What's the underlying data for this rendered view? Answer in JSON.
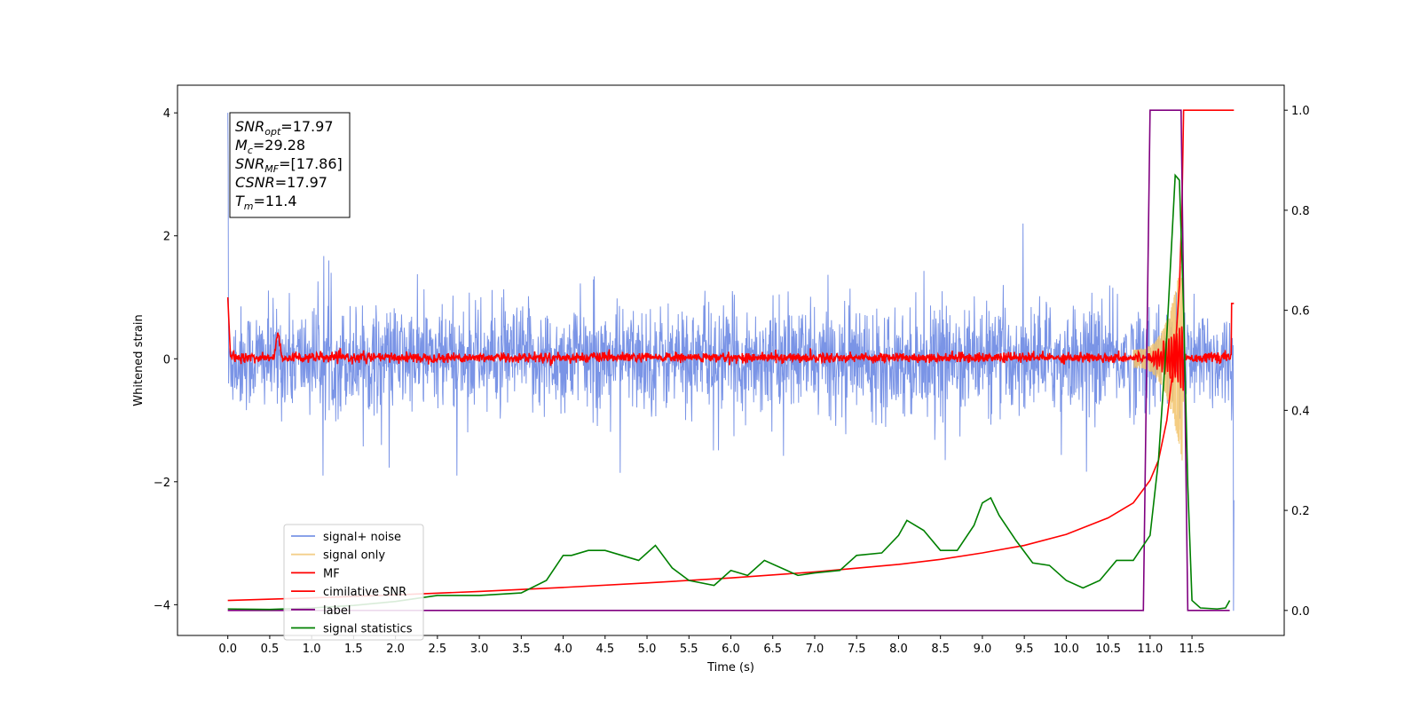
{
  "chart_data": {
    "type": "line",
    "xlabel": "Time (s)",
    "ylabel": "Whitened strain",
    "xlim": [
      -0.6,
      12.6
    ],
    "ylim": [
      -4.5,
      4.45
    ],
    "y2lim": [
      -0.05,
      1.05
    ],
    "x_ticks": [
      "0.0",
      "0.5",
      "1.0",
      "1.5",
      "2.0",
      "2.5",
      "3.0",
      "3.5",
      "4.0",
      "4.5",
      "5.0",
      "5.5",
      "6.0",
      "6.5",
      "7.0",
      "7.5",
      "8.0",
      "8.5",
      "9.0",
      "9.5",
      "10.0",
      "10.5",
      "11.0",
      "11.5"
    ],
    "y_ticks": [
      {
        "value": 4,
        "label": "4"
      },
      {
        "value": 2,
        "label": "2"
      },
      {
        "value": 0,
        "label": "0"
      },
      {
        "value": -2,
        "label": "−2"
      },
      {
        "value": -4,
        "label": "−4"
      }
    ],
    "y2_ticks": [
      {
        "value": 1.0,
        "label": "1.0"
      },
      {
        "value": 0.8,
        "label": "0.8"
      },
      {
        "value": 0.6,
        "label": "0.6"
      },
      {
        "value": 0.4,
        "label": "0.4"
      },
      {
        "value": 0.2,
        "label": "0.2"
      },
      {
        "value": 0.0,
        "label": "0.0"
      }
    ],
    "annotation_lines": [
      {
        "sym": "SNR",
        "sub": "opt",
        "val": "=17.97"
      },
      {
        "sym": "M",
        "sub": "c",
        "val": "=29.28"
      },
      {
        "sym": "SNR",
        "sub": "MF",
        "val": "=[17.86]"
      },
      {
        "sym": "CSNR",
        "sub": "",
        "val": "=17.97"
      },
      {
        "sym": "T",
        "sub": "m",
        "val": "=11.4"
      }
    ],
    "legend_position": "lower-left",
    "series": [
      {
        "name": "signal+ noise",
        "axis": "left",
        "color": "#7a94e6",
        "style": "noise",
        "t_range": [
          0.0,
          12.0
        ],
        "y_amplitude": 1.3,
        "notes_peak_values": [
          4.0,
          2.2,
          -1.9
        ]
      },
      {
        "name": "signal only",
        "axis": "left",
        "color": "#f2c46d",
        "style": "chirp",
        "t_range": [
          10.8,
          11.4
        ],
        "y_peak": 1.8
      },
      {
        "name": "MF",
        "axis": "left",
        "color": "#ff0000",
        "style": "mf_noise",
        "t_range": [
          0.0,
          12.0
        ],
        "y_amplitude": 0.1,
        "spike": {
          "x": 0.6,
          "y": 0.4
        }
      },
      {
        "name": "cimilative SNR",
        "axis": "right",
        "color": "#ff0000",
        "x": [
          0.0,
          1.0,
          2.0,
          3.0,
          4.0,
          5.0,
          6.0,
          7.0,
          8.0,
          8.5,
          9.0,
          9.5,
          10.0,
          10.5,
          10.8,
          11.0,
          11.1,
          11.2,
          11.3,
          11.35,
          11.38,
          11.4,
          11.45,
          11.6,
          11.8,
          12.0
        ],
        "y": [
          0.02,
          0.025,
          0.031,
          0.038,
          0.046,
          0.055,
          0.065,
          0.077,
          0.092,
          0.102,
          0.115,
          0.13,
          0.152,
          0.185,
          0.215,
          0.26,
          0.3,
          0.38,
          0.52,
          0.65,
          0.8,
          1.0,
          1.0,
          1.0,
          1.0,
          1.0
        ]
      },
      {
        "name": "label",
        "axis": "right",
        "color": "#800080",
        "x": [
          0.0,
          10.92,
          11.0,
          11.37,
          11.45,
          11.95
        ],
        "y": [
          0.0,
          0.0,
          1.0,
          1.0,
          0.0,
          0.0
        ]
      },
      {
        "name": "signal statistics",
        "axis": "right",
        "color": "#008000",
        "x": [
          0.0,
          0.5,
          1.0,
          1.5,
          2.0,
          2.5,
          3.0,
          3.5,
          3.8,
          4.0,
          4.1,
          4.3,
          4.5,
          4.7,
          4.9,
          5.1,
          5.3,
          5.5,
          5.8,
          6.0,
          6.2,
          6.4,
          6.6,
          6.8,
          7.0,
          7.3,
          7.5,
          7.8,
          8.0,
          8.1,
          8.3,
          8.5,
          8.7,
          8.9,
          9.0,
          9.1,
          9.2,
          9.4,
          9.6,
          9.8,
          10.0,
          10.2,
          10.4,
          10.6,
          10.8,
          11.0,
          11.1,
          11.2,
          11.3,
          11.35,
          11.4,
          11.45,
          11.5,
          11.6,
          11.8,
          11.9,
          11.95
        ],
        "y": [
          0.003,
          0.002,
          0.005,
          0.01,
          0.018,
          0.03,
          0.03,
          0.035,
          0.06,
          0.11,
          0.11,
          0.12,
          0.12,
          0.11,
          0.1,
          0.13,
          0.085,
          0.06,
          0.05,
          0.08,
          0.07,
          0.1,
          0.085,
          0.07,
          0.075,
          0.08,
          0.11,
          0.115,
          0.15,
          0.18,
          0.16,
          0.12,
          0.12,
          0.17,
          0.215,
          0.225,
          0.19,
          0.14,
          0.095,
          0.09,
          0.06,
          0.045,
          0.06,
          0.1,
          0.1,
          0.15,
          0.3,
          0.55,
          0.87,
          0.86,
          0.6,
          0.25,
          0.02,
          0.005,
          0.003,
          0.005,
          0.02
        ]
      }
    ]
  }
}
